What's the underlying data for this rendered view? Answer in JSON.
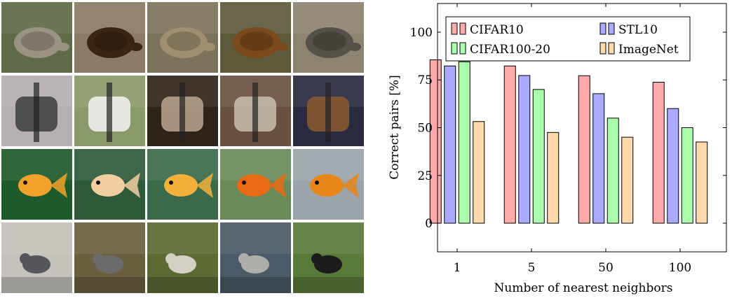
{
  "image_grid": {
    "rows": [
      {
        "category": "turtle",
        "thumbs": [
          {
            "icon": "turtle-on-rocks-photo",
            "bg": "#5f6b48",
            "fg": "#9a9384"
          },
          {
            "icon": "box-turtle-photo",
            "bg": "#8a7a66",
            "fg": "#3a2414"
          },
          {
            "icon": "tortoise-shell-photo",
            "bg": "#7c735c",
            "fg": "#9d8f6f"
          },
          {
            "icon": "painted-turtle-photo",
            "bg": "#5d5a3c",
            "fg": "#7a4a1c"
          },
          {
            "icon": "gray-turtle-photo",
            "bg": "#8d8371",
            "fg": "#55514a"
          }
        ]
      },
      {
        "category": "musical instruments",
        "thumbs": [
          {
            "icon": "microphone-photo",
            "bg": "#b5aeb3",
            "fg": "#3d3d3d"
          },
          {
            "icon": "girl-with-flute-photo",
            "bg": "#8a9a6a",
            "fg": "#f3f3f3"
          },
          {
            "icon": "clarinet-player-photo",
            "bg": "#2f2419",
            "fg": "#b9a690"
          },
          {
            "icon": "flute-keys-photo",
            "bg": "#6a5040",
            "fg": "#c8c0b0"
          },
          {
            "icon": "orchestra-players-photo",
            "bg": "#2a2a3e",
            "fg": "#8a5a30"
          }
        ]
      },
      {
        "category": "goldfish",
        "thumbs": [
          {
            "icon": "goldfish-green-bg-photo",
            "bg": "#1f5a2a",
            "fg": "#f2a12a"
          },
          {
            "icon": "goldfish-pale-photo",
            "bg": "#2f5a3a",
            "fg": "#f1cfa0"
          },
          {
            "icon": "goldfish-leaf-photo",
            "bg": "#3a6a4a",
            "fg": "#f3b03a"
          },
          {
            "icon": "goldfish-aquarium-photo",
            "bg": "#6a8a5a",
            "fg": "#e86a14"
          },
          {
            "icon": "goldfish-bubble-eye-photo",
            "bg": "#9aa4aa",
            "fg": "#e8861a"
          }
        ]
      },
      {
        "category": "birds",
        "thumbs": [
          {
            "icon": "dipper-on-rock-photo",
            "bg": "#c5c2bb",
            "fg": "#55565c"
          },
          {
            "icon": "dipper-in-water-photo",
            "bg": "#6a6040",
            "fg": "#6b6b6b"
          },
          {
            "icon": "bird-on-branch-photo",
            "bg": "#5d6a34",
            "fg": "#d4d0c6"
          },
          {
            "icon": "small-bird-on-boulder-photo",
            "bg": "#4a5a66",
            "fg": "#aeaeaa"
          },
          {
            "icon": "dogs-on-grass-photo",
            "bg": "#5a7a3a",
            "fg": "#1c1c1c"
          }
        ]
      }
    ]
  },
  "chart_data": {
    "type": "bar",
    "categories": [
      "1",
      "5",
      "50",
      "100"
    ],
    "series": [
      {
        "name": "CIFAR10",
        "color": "#ffaaaa",
        "values": [
          85.5,
          82.3,
          77.2,
          73.8
        ]
      },
      {
        "name": "STL10",
        "color": "#aaaaff",
        "values": [
          82.3,
          77.3,
          67.8,
          60.0
        ]
      },
      {
        "name": "CIFAR100-20",
        "color": "#aaffaa",
        "values": [
          84.5,
          70.0,
          55.0,
          50.0
        ]
      },
      {
        "name": "ImageNet",
        "color": "#ffd9aa",
        "values": [
          53.2,
          47.5,
          45.0,
          42.5
        ]
      }
    ],
    "xlabel": "Number of nearest neighbors",
    "ylabel": "Correct pairs [%]",
    "ylim": [
      -15,
      115
    ],
    "yticks": [
      0,
      25,
      50,
      75,
      100
    ],
    "grid": false,
    "legend": "top"
  }
}
